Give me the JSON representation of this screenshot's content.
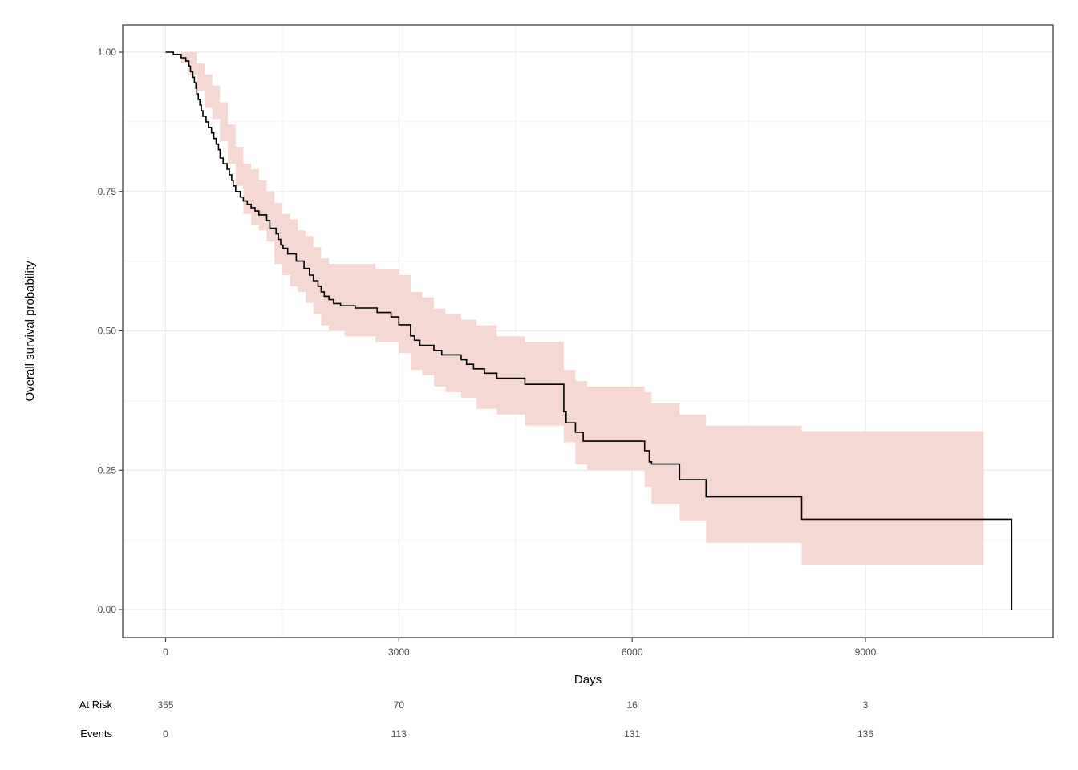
{
  "chart_data": {
    "type": "line",
    "subtype": "kaplan-meier",
    "title": "",
    "xlabel": "Days",
    "ylabel": "Overall survival probability",
    "xlim": [
      -1800,
      11800
    ],
    "ylim": [
      -0.05,
      1.05
    ],
    "x_ticks": [
      0,
      3000,
      6000,
      9000
    ],
    "x_tick_labels": [
      "0",
      "3000",
      "6000",
      "9000"
    ],
    "y_ticks": [
      0,
      0.25,
      0.5,
      0.75,
      1.0
    ],
    "y_tick_labels": [
      "0.00",
      "0.25",
      "0.50",
      "0.75",
      "1.00"
    ],
    "grid": true,
    "colors": {
      "curve": "#000000",
      "ci_fill": "#f5d8d4",
      "grid": "#ebebeb",
      "panel_border": "#333333"
    },
    "series": [
      {
        "x": [
          0,
          100,
          200,
          260,
          300,
          320,
          350,
          370,
          390,
          400,
          420,
          440,
          460,
          480,
          520,
          550,
          590,
          620,
          650,
          680,
          700,
          740,
          790,
          820,
          850,
          870,
          900,
          960,
          1000,
          1050,
          1100,
          1150,
          1200,
          1300,
          1340,
          1420,
          1450,
          1480,
          1510,
          1570,
          1680,
          1780,
          1850,
          1900,
          1960,
          2000,
          2040,
          2100,
          2160,
          2250,
          2440,
          2720,
          2900,
          3000,
          3150,
          3200,
          3270,
          3450,
          3550,
          3800,
          3870,
          3960,
          4100,
          4260,
          4620,
          5120,
          5150,
          5270,
          5370,
          5420,
          6160,
          6220,
          6250,
          6610,
          6950,
          8180,
          10880,
          10880
        ],
        "y": [
          1.0,
          0.996,
          0.99,
          0.984,
          0.975,
          0.965,
          0.955,
          0.945,
          0.935,
          0.925,
          0.915,
          0.905,
          0.895,
          0.885,
          0.875,
          0.865,
          0.855,
          0.845,
          0.835,
          0.825,
          0.81,
          0.8,
          0.79,
          0.78,
          0.77,
          0.76,
          0.75,
          0.74,
          0.733,
          0.727,
          0.721,
          0.715,
          0.708,
          0.698,
          0.684,
          0.674,
          0.664,
          0.654,
          0.648,
          0.638,
          0.625,
          0.612,
          0.6,
          0.59,
          0.58,
          0.57,
          0.562,
          0.556,
          0.549,
          0.545,
          0.541,
          0.533,
          0.525,
          0.511,
          0.491,
          0.483,
          0.474,
          0.465,
          0.457,
          0.448,
          0.44,
          0.432,
          0.424,
          0.415,
          0.404,
          0.355,
          0.335,
          0.318,
          0.302,
          0.302,
          0.285,
          0.265,
          0.261,
          0.233,
          0.202,
          0.162,
          0.162,
          0.0
        ],
        "ci_x": [
          0,
          200,
          300,
          400,
          500,
          600,
          700,
          800,
          900,
          1000,
          1100,
          1200,
          1300,
          1400,
          1500,
          1600,
          1700,
          1800,
          1900,
          2000,
          2100,
          2300,
          2700,
          3000,
          3150,
          3300,
          3450,
          3600,
          3800,
          4000,
          4260,
          4620,
          5120,
          5270,
          5420,
          6160,
          6250,
          6610,
          6950,
          8180,
          10520
        ],
        "ci_lower": [
          1.0,
          0.98,
          0.96,
          0.93,
          0.9,
          0.88,
          0.84,
          0.8,
          0.76,
          0.71,
          0.69,
          0.68,
          0.66,
          0.62,
          0.6,
          0.58,
          0.57,
          0.55,
          0.53,
          0.51,
          0.5,
          0.49,
          0.48,
          0.46,
          0.43,
          0.42,
          0.4,
          0.39,
          0.38,
          0.36,
          0.35,
          0.33,
          0.3,
          0.26,
          0.25,
          0.22,
          0.19,
          0.16,
          0.12,
          0.08,
          0.08
        ],
        "ci_upper": [
          1.0,
          1.0,
          1.0,
          0.98,
          0.96,
          0.94,
          0.91,
          0.87,
          0.83,
          0.8,
          0.79,
          0.77,
          0.75,
          0.73,
          0.71,
          0.7,
          0.68,
          0.67,
          0.65,
          0.63,
          0.62,
          0.62,
          0.61,
          0.6,
          0.57,
          0.56,
          0.54,
          0.53,
          0.52,
          0.51,
          0.49,
          0.48,
          0.43,
          0.41,
          0.4,
          0.39,
          0.37,
          0.35,
          0.33,
          0.32,
          0.32
        ]
      }
    ]
  },
  "risk_table": {
    "rows": [
      {
        "label": "At Risk",
        "values": [
          "355",
          "70",
          "16",
          "3"
        ]
      },
      {
        "label": "Events",
        "values": [
          "0",
          "113",
          "131",
          "136"
        ]
      }
    ]
  }
}
